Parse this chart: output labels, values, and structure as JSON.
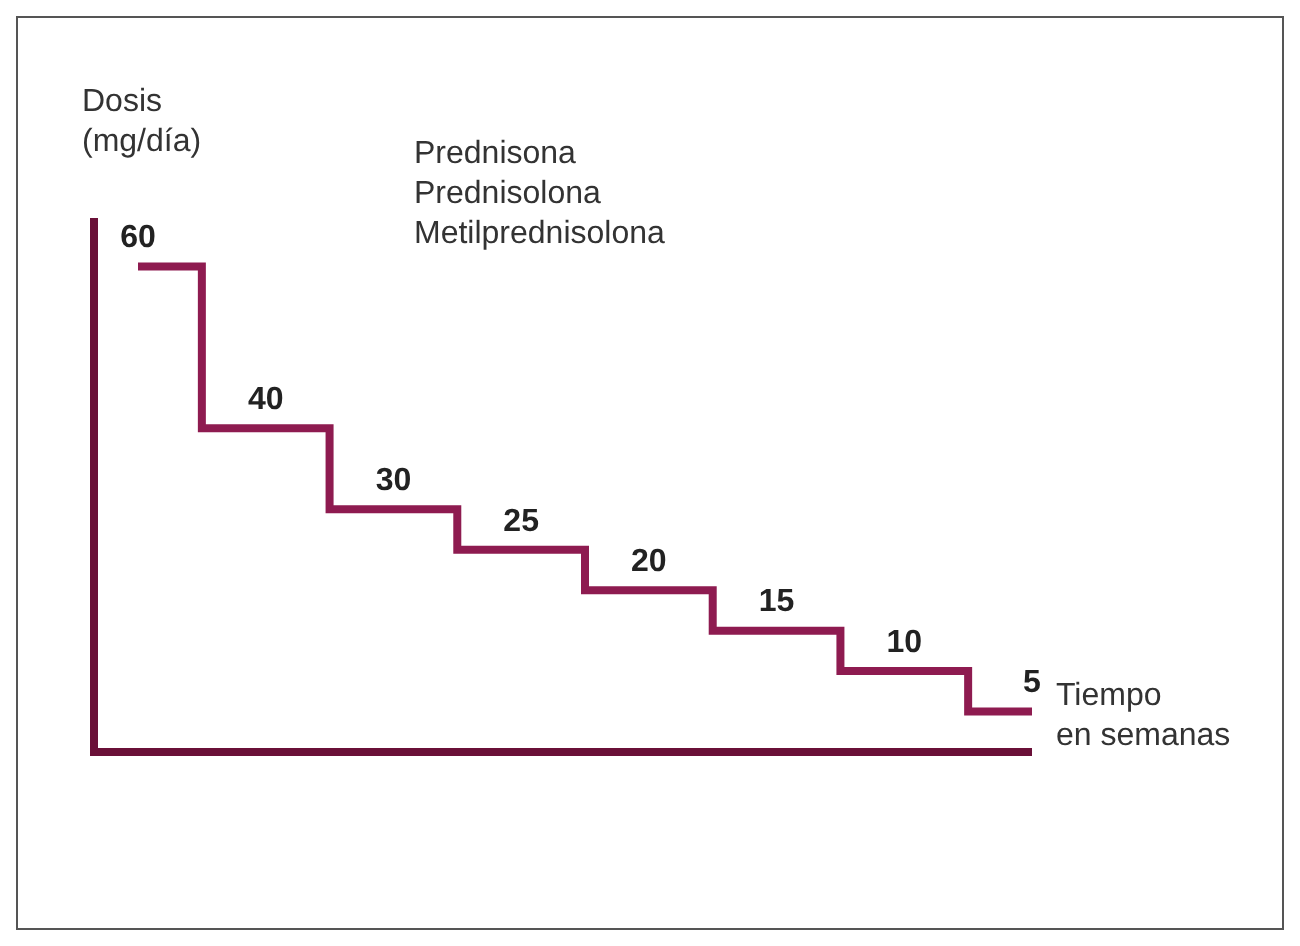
{
  "chart_data": {
    "type": "step",
    "ylabel": "Dosis\n(mg/día)",
    "xlabel": "Tiempo\nen semanas",
    "annotations": [
      "Prednisona",
      "Prednisolona",
      "Metilprednisolona"
    ],
    "categories": [
      null,
      null,
      null,
      null,
      null,
      null,
      null,
      null
    ],
    "series": [
      {
        "color": "#8e1b50",
        "values": [
          60,
          40,
          30,
          25,
          20,
          15,
          10,
          5
        ]
      }
    ],
    "ylim": [
      0,
      66
    ],
    "tick_labels": false,
    "grid": false,
    "legend": false,
    "data_labels": true
  }
}
